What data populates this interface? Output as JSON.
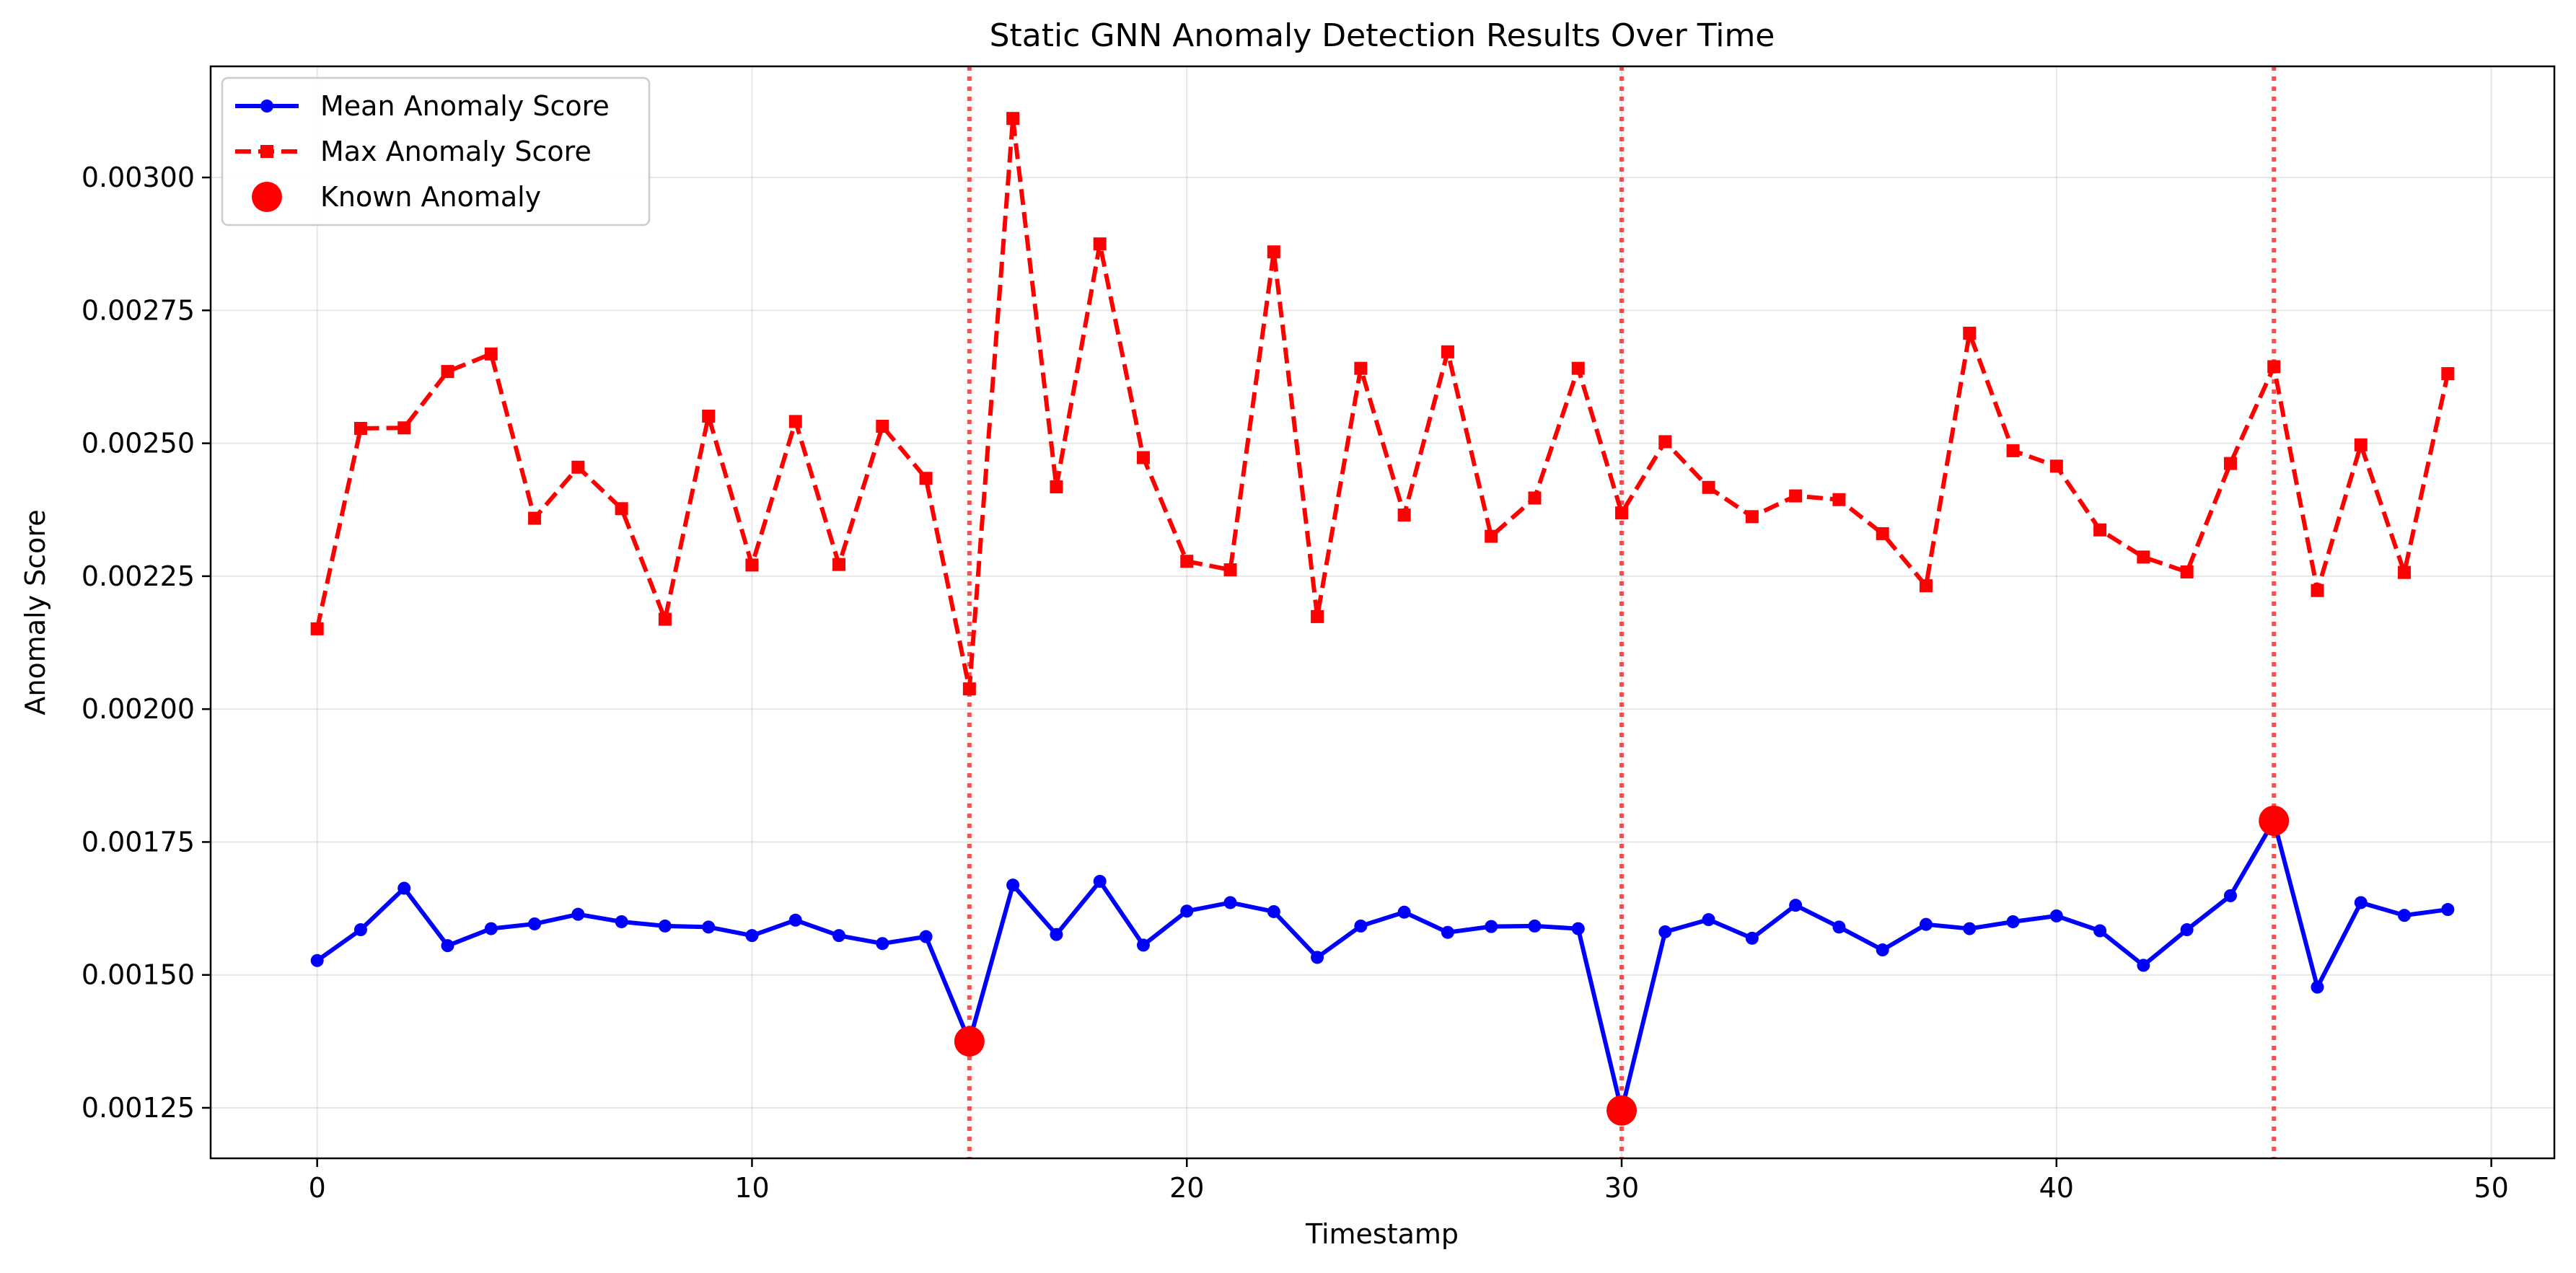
{
  "chart_data": {
    "type": "line",
    "title": "Static GNN Anomaly Detection Results Over Time",
    "xlabel": "Timestamp",
    "ylabel": "Anomaly Score",
    "xlim": [
      -2.45,
      51.45
    ],
    "ylim": [
      0.001155,
      0.003209
    ],
    "x_ticks": [
      0,
      10,
      20,
      30,
      40,
      50
    ],
    "y_ticks": [
      0.00125,
      0.0015,
      0.00175,
      0.002,
      0.00225,
      0.0025,
      0.00275,
      0.003
    ],
    "y_tick_labels": [
      "0.00125",
      "0.00150",
      "0.00175",
      "0.00200",
      "0.00225",
      "0.00250",
      "0.00275",
      "0.00300"
    ],
    "grid": true,
    "legend_position": "top-left",
    "x": [
      0,
      1,
      2,
      3,
      4,
      5,
      6,
      7,
      8,
      9,
      10,
      11,
      12,
      13,
      14,
      15,
      16,
      17,
      18,
      19,
      20,
      21,
      22,
      23,
      24,
      25,
      26,
      27,
      28,
      29,
      30,
      31,
      32,
      33,
      34,
      35,
      36,
      37,
      38,
      39,
      40,
      41,
      42,
      43,
      44,
      45,
      46,
      47,
      48,
      49
    ],
    "series": [
      {
        "name": "Mean Anomaly Score",
        "color": "#0000ff",
        "line_style": "solid",
        "marker": "circle",
        "values": [
          0.001527,
          0.001585,
          0.001663,
          0.001555,
          0.001587,
          0.001596,
          0.001614,
          0.0016,
          0.001592,
          0.00159,
          0.001574,
          0.001603,
          0.001574,
          0.001559,
          0.001572,
          0.001375,
          0.001669,
          0.001576,
          0.001676,
          0.001556,
          0.00162,
          0.001636,
          0.001619,
          0.001533,
          0.001592,
          0.001618,
          0.00158,
          0.001591,
          0.001592,
          0.001587,
          0.001245,
          0.001581,
          0.001604,
          0.001569,
          0.001631,
          0.00159,
          0.001547,
          0.001595,
          0.001587,
          0.0016,
          0.001611,
          0.001583,
          0.001518,
          0.001585,
          0.001649,
          0.00179,
          0.001477,
          0.001636,
          0.001612,
          0.001623
        ]
      },
      {
        "name": "Max Anomaly Score",
        "color": "#ff0000",
        "line_style": "dashed",
        "marker": "square",
        "values": [
          0.002151,
          0.002528,
          0.002529,
          0.002635,
          0.002668,
          0.002359,
          0.002455,
          0.002377,
          0.002169,
          0.002551,
          0.002271,
          0.002541,
          0.002272,
          0.002532,
          0.002434,
          0.002038,
          0.003111,
          0.002418,
          0.002875,
          0.002473,
          0.002278,
          0.002262,
          0.00286,
          0.002174,
          0.002641,
          0.002365,
          0.002672,
          0.002325,
          0.002397,
          0.002641,
          0.002369,
          0.002503,
          0.002417,
          0.002362,
          0.002401,
          0.002394,
          0.00233,
          0.002232,
          0.002707,
          0.002486,
          0.002457,
          0.002337,
          0.002286,
          0.002258,
          0.002462,
          0.002644,
          0.002223,
          0.002497,
          0.002257,
          0.002631
        ]
      }
    ],
    "known_anomalies": {
      "name": "Known Anomaly",
      "color": "#ff0000",
      "x": [
        15,
        30,
        45
      ],
      "y": [
        0.001375,
        0.001245,
        0.00179
      ]
    }
  }
}
